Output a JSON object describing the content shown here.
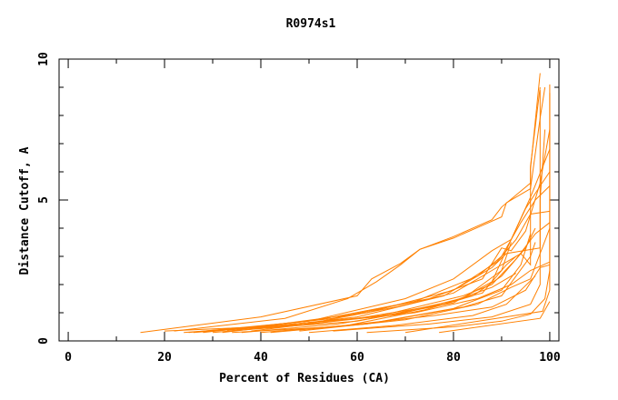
{
  "chart_data": {
    "type": "line",
    "title": "R0974s1",
    "xlabel": "Percent of Residues (CA)",
    "ylabel": "Distance Cutoff, A",
    "xlim": [
      -1.9,
      101.9
    ],
    "ylim": [
      0,
      10
    ],
    "xticks": [
      "0",
      "20",
      "40",
      "60",
      "80",
      "100"
    ],
    "yticks": [
      "0",
      "5",
      "10"
    ],
    "grid": false,
    "line_color": "#ff8000",
    "series": [
      {
        "points": [
          [
            15,
            0.3
          ],
          [
            40,
            0.85
          ],
          [
            60,
            1.6
          ],
          [
            63,
            2.2
          ],
          [
            69,
            2.75
          ],
          [
            73,
            3.25
          ],
          [
            80,
            3.7
          ],
          [
            88,
            4.3
          ],
          [
            90,
            4.75
          ],
          [
            96,
            5.6
          ],
          [
            96,
            6.1
          ],
          [
            98,
            9.5
          ]
        ]
      },
      {
        "points": [
          [
            22,
            0.35
          ],
          [
            45,
            0.8
          ],
          [
            58,
            1.5
          ],
          [
            64,
            2.1
          ],
          [
            69,
            2.7
          ],
          [
            73,
            3.25
          ],
          [
            80,
            3.65
          ],
          [
            86,
            4.1
          ],
          [
            90,
            4.4
          ],
          [
            91,
            4.9
          ],
          [
            96,
            5.4
          ],
          [
            98,
            7.9
          ],
          [
            99,
            9.0
          ]
        ]
      },
      {
        "points": [
          [
            25,
            0.3
          ],
          [
            50,
            0.7
          ],
          [
            70,
            1.5
          ],
          [
            80,
            2.2
          ],
          [
            88,
            3.2
          ],
          [
            92,
            3.6
          ],
          [
            96,
            5.1
          ],
          [
            100,
            6.8
          ]
        ]
      },
      {
        "points": [
          [
            28,
            0.3
          ],
          [
            55,
            0.8
          ],
          [
            72,
            1.4
          ],
          [
            85,
            2.3
          ],
          [
            90,
            3.0
          ],
          [
            94,
            4.2
          ],
          [
            97,
            5.0
          ],
          [
            100,
            5.5
          ]
        ]
      },
      {
        "points": [
          [
            30,
            0.35
          ],
          [
            52,
            0.75
          ],
          [
            75,
            1.5
          ],
          [
            86,
            2.2
          ],
          [
            90,
            3.3
          ],
          [
            92,
            3.2
          ],
          [
            95,
            3.9
          ],
          [
            98,
            5.6
          ],
          [
            100,
            7.5
          ]
        ]
      },
      {
        "points": [
          [
            32,
            0.3
          ],
          [
            60,
            0.85
          ],
          [
            78,
            1.6
          ],
          [
            88,
            2.6
          ],
          [
            91,
            3.1
          ],
          [
            98,
            3.3
          ],
          [
            98,
            8.9
          ]
        ]
      },
      {
        "points": [
          [
            35,
            0.4
          ],
          [
            62,
            1.0
          ],
          [
            80,
            1.8
          ],
          [
            89,
            2.8
          ],
          [
            93,
            3.6
          ],
          [
            96,
            4.5
          ],
          [
            100,
            4.6
          ]
        ]
      },
      {
        "points": [
          [
            38,
            0.35
          ],
          [
            65,
            0.9
          ],
          [
            82,
            1.6
          ],
          [
            88,
            2.0
          ],
          [
            93,
            2.9
          ],
          [
            97,
            3.8
          ],
          [
            100,
            4.2
          ]
        ]
      },
      {
        "points": [
          [
            40,
            0.3
          ],
          [
            58,
            0.55
          ],
          [
            74,
            1.1
          ],
          [
            84,
            1.6
          ],
          [
            90,
            2.3
          ],
          [
            95,
            3.3
          ],
          [
            97,
            4.0
          ]
        ]
      },
      {
        "points": [
          [
            26,
            0.3
          ],
          [
            50,
            0.6
          ],
          [
            72,
            1.0
          ],
          [
            85,
            1.5
          ],
          [
            92,
            2.0
          ],
          [
            96,
            2.5
          ],
          [
            100,
            2.8
          ]
        ]
      },
      {
        "points": [
          [
            34,
            0.3
          ],
          [
            55,
            0.5
          ],
          [
            76,
            0.9
          ],
          [
            88,
            1.2
          ],
          [
            95,
            1.8
          ],
          [
            98,
            2.6
          ],
          [
            100,
            2.7
          ]
        ]
      },
      {
        "points": [
          [
            45,
            0.35
          ],
          [
            64,
            0.65
          ],
          [
            82,
            1.2
          ],
          [
            90,
            1.6
          ],
          [
            96,
            3.0
          ],
          [
            97,
            3.5
          ]
        ]
      },
      {
        "points": [
          [
            50,
            0.3
          ],
          [
            68,
            0.55
          ],
          [
            84,
            0.9
          ],
          [
            91,
            1.3
          ],
          [
            94,
            1.8
          ],
          [
            97,
            2.3
          ]
        ]
      },
      {
        "points": [
          [
            55,
            0.35
          ],
          [
            75,
            0.6
          ],
          [
            88,
            0.85
          ],
          [
            96,
            1.3
          ],
          [
            98,
            2.0
          ],
          [
            98,
            5.0
          ],
          [
            99,
            7.5
          ]
        ]
      },
      {
        "points": [
          [
            62,
            0.3
          ],
          [
            80,
            0.5
          ],
          [
            90,
            0.7
          ],
          [
            96,
            0.95
          ],
          [
            99,
            1.5
          ],
          [
            100,
            2.5
          ],
          [
            100,
            8.8
          ]
        ]
      },
      {
        "points": [
          [
            70,
            0.3
          ],
          [
            98.5,
            1.05
          ],
          [
            100,
            1.8
          ],
          [
            100,
            9.1
          ]
        ]
      },
      {
        "points": [
          [
            77,
            0.3
          ],
          [
            98,
            0.8
          ],
          [
            100,
            1.4
          ]
        ]
      },
      {
        "points": [
          [
            20,
            0.35
          ],
          [
            40,
            0.5
          ],
          [
            60,
            0.8
          ],
          [
            78,
            1.3
          ],
          [
            88,
            1.9
          ],
          [
            93,
            2.4
          ]
        ]
      },
      {
        "points": [
          [
            24,
            0.3
          ],
          [
            44,
            0.55
          ],
          [
            66,
            0.9
          ],
          [
            82,
            1.5
          ],
          [
            90,
            2.5
          ],
          [
            92,
            3.5
          ]
        ]
      },
      {
        "points": [
          [
            42,
            0.3
          ],
          [
            62,
            0.6
          ],
          [
            80,
            1.15
          ],
          [
            90,
            1.8
          ],
          [
            94,
            2.7
          ],
          [
            96,
            3.8
          ]
        ]
      },
      {
        "points": [
          [
            36,
            0.3
          ],
          [
            56,
            0.6
          ],
          [
            70,
            1.0
          ],
          [
            86,
            1.7
          ],
          [
            91,
            2.7
          ],
          [
            93,
            3.0
          ]
        ]
      },
      {
        "points": [
          [
            30,
            0.3
          ],
          [
            48,
            0.55
          ],
          [
            68,
            1.2
          ],
          [
            80,
            1.7
          ],
          [
            88,
            2.5
          ],
          [
            94,
            3.1
          ],
          [
            96,
            2.7
          ],
          [
            96,
            6.2
          ],
          [
            98,
            9.0
          ]
        ]
      },
      {
        "points": [
          [
            48,
            0.35
          ],
          [
            70,
            0.75
          ],
          [
            85,
            1.3
          ],
          [
            92,
            1.9
          ],
          [
            96,
            2.2
          ],
          [
            100,
            4.0
          ]
        ]
      },
      {
        "points": [
          [
            33,
            0.35
          ],
          [
            60,
            0.7
          ],
          [
            80,
            1.35
          ],
          [
            88,
            2.1
          ],
          [
            92,
            3.6
          ],
          [
            95,
            4.7
          ],
          [
            98,
            5.5
          ],
          [
            100,
            6.0
          ]
        ]
      }
    ]
  }
}
